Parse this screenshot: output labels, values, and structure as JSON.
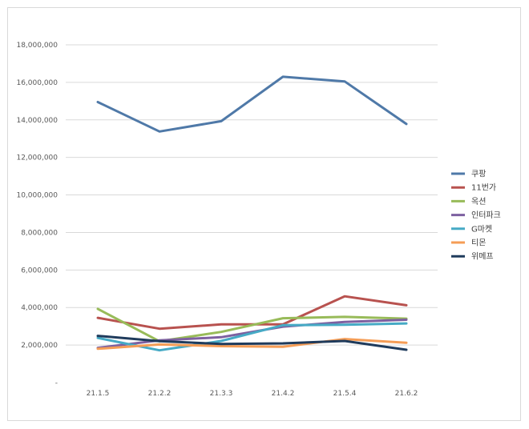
{
  "chart_data": {
    "type": "line",
    "title": "",
    "xlabel": "",
    "ylabel": "",
    "categories": [
      "21.1.5",
      "21.2.2",
      "21.3.3",
      "21.4.2",
      "21.5.4",
      "21.6.2"
    ],
    "ylim": [
      0,
      18000000
    ],
    "yticks": [
      0,
      2000000,
      4000000,
      6000000,
      8000000,
      10000000,
      12000000,
      14000000,
      16000000,
      18000000
    ],
    "ytick_labels": [
      "-",
      "2,000,000",
      "4,000,000",
      "6,000,000",
      "8,000,000",
      "10,000,000",
      "12,000,000",
      "14,000,000",
      "16,000,000",
      "18,000,000"
    ],
    "grid": true,
    "legend_position": "right",
    "series": [
      {
        "name": "쿠팡",
        "color": "#4f79a8",
        "values": [
          14950000,
          13380000,
          13930000,
          16300000,
          16050000,
          13780000
        ]
      },
      {
        "name": "11번가",
        "color": "#b8524f",
        "values": [
          3450000,
          2870000,
          3100000,
          3100000,
          4600000,
          4120000
        ]
      },
      {
        "name": "옥션",
        "color": "#98bb59",
        "values": [
          3930000,
          2200000,
          2700000,
          3430000,
          3500000,
          3410000
        ]
      },
      {
        "name": "인터파크",
        "color": "#7d60a0",
        "values": [
          1850000,
          2250000,
          2420000,
          2980000,
          3230000,
          3350000
        ]
      },
      {
        "name": "G마켓",
        "color": "#46aac5",
        "values": [
          2380000,
          1720000,
          2220000,
          3060000,
          3080000,
          3150000
        ]
      },
      {
        "name": "티몬",
        "color": "#f59d56",
        "values": [
          1800000,
          2030000,
          1940000,
          1910000,
          2320000,
          2120000
        ]
      },
      {
        "name": "위메프",
        "color": "#1f3b5c",
        "values": [
          2490000,
          2210000,
          2060000,
          2090000,
          2220000,
          1750000
        ]
      }
    ]
  }
}
